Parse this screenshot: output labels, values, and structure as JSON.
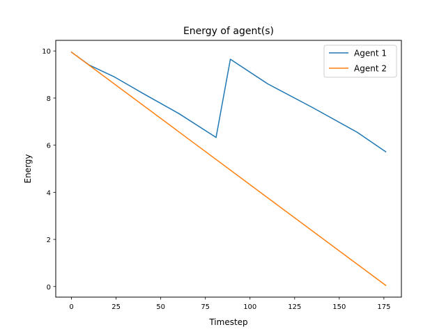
{
  "chart_data": {
    "type": "line",
    "title": "Energy of agent(s)",
    "xlabel": "Timestep",
    "ylabel": "Energy",
    "xlim": [
      -8.8,
      184.8
    ],
    "ylim": [
      -0.45,
      10.45
    ],
    "xticks": [
      0,
      25,
      50,
      75,
      100,
      125,
      150,
      175
    ],
    "yticks": [
      0,
      2,
      4,
      6,
      8,
      10
    ],
    "grid": false,
    "legend_position": "top-right",
    "series": [
      {
        "name": "Agent 1",
        "color": "#1f77b4",
        "points": [
          [
            0,
            9.95
          ],
          [
            10,
            9.4
          ],
          [
            24,
            8.9
          ],
          [
            40,
            8.2
          ],
          [
            60,
            7.35
          ],
          [
            81,
            6.33
          ],
          [
            89,
            9.65
          ],
          [
            110,
            8.6
          ],
          [
            135,
            7.6
          ],
          [
            160,
            6.55
          ],
          [
            176,
            5.72
          ]
        ]
      },
      {
        "name": "Agent 2",
        "color": "#ff7f0e",
        "points": [
          [
            0,
            9.95
          ],
          [
            176,
            0.05
          ]
        ]
      }
    ]
  }
}
